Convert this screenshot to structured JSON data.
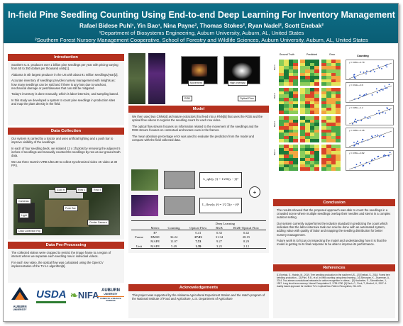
{
  "header": {
    "title": "In-field Pine Seedling Counting Using End-to-end Deep Learning For Inventory Management",
    "authors": "Rafael Bidese Puhl¹, Yin Bao¹, Nina Payne², Thomas Stokes², Ryan Nadel², Scott Enebak²",
    "affiliation_1": "¹Department of Biosystems Engineering, Auburn University, Auburn, AL, United States",
    "affiliation_2": "²Southern Forest Nursery Management Cooperative, School of Forestry and Wildlife Sciences, Auburn University, Auburn, AL, United States"
  },
  "introduction": {
    "heading": "Introduction",
    "paragraphs": [
      "Southern U.S. produces over 1 billion pine seedlings per year with pricing varying from 50 to 350 dollars per thousand units[1].",
      "Alabama is 4th largest producer in the US with about 91 million seedlings/year[2].",
      "Accurate inventory of seedlings provides nursery management with insights as: how many seedlings can be sold and if there is any loss due to washout, mechanical damage or pest/diseases that can still be mitigated.",
      "Today's inventory is done manually, which is labor-intensive, and sampling based.",
      "In this study we developed a system to count pine seedlings in production sites and map the plant density in the field."
    ]
  },
  "data_collection": {
    "heading": "Data Collection",
    "paragraphs": [
      "Our system is carried by a tractor and uses artificial lighting and a push bar to improve visibility of the seedlings.",
      "In each of four seedling beds, we isolated 12 x 1ft plots by removing the adjacent 5 inches of seedlings and manually counted the seedlings by row as our ground truth data.",
      "We use three Garmin VIRB Ultra 30 to collect synchronized video 4K video at 30 FPS."
    ],
    "figure_labels": [
      "3150 ft",
      "Row 1",
      "Row 4",
      "Cameras",
      "Push Bar",
      "Light",
      "Center Camera",
      "Data Collection Rig"
    ]
  },
  "preprocessing": {
    "heading": "Data Pre-Processing",
    "paragraphs": [
      "The collected videos were cropped to restrict the image frame to a region of interest where we separate each seedling row in individual videos.",
      "For each row video, the optical flow was calculated using the OpenCV implementation of the TV-L1 algorithm[6]."
    ]
  },
  "flow_figure": {
    "labels": [
      "Movement",
      "High Intensity",
      "RGB",
      "Optical Flow"
    ]
  },
  "model": {
    "heading": "Model",
    "paragraphs": [
      "We then used two CNNs[4] as feature extractors that feed into a RNN[5] that uses the RGB and the optical flow videos to regress the seedling count for each row video.",
      "The optical flow stream focuses on information related to the movement of the seedlings and the RGB stream focuses on contextual and texture cues in the frames.",
      "The mean absolute percentage error was used to evaluate the prediction from the model and compare with the field collected data."
    ],
    "loss_1": "L_rgb(y, ŷ) = 1/2 Σ(y − ŷ)²",
    "loss_2": "L_flow(y, ŷ) = 1/2 Σ(y − ŷ)²"
  },
  "results_table": {
    "group_header": "Deep Learning",
    "columns": [
      "Metric",
      "Counting",
      "Optical Flow",
      "RGB",
      "RGB+Optical Flow"
    ],
    "rows": [
      {
        "group": "",
        "metric": "R²",
        "values": [
          "",
          "0.41",
          "0.33",
          "0.42"
        ]
      },
      {
        "group": "Frame",
        "metric": "RMSE",
        "values": [
          "36.24",
          "27.03",
          "31.34",
          "28.15"
        ]
      },
      {
        "group": "",
        "metric": "MAPE",
        "values": [
          "11.07",
          "7.53",
          "9.27",
          "8.29"
        ]
      },
      {
        "group": "Unit",
        "metric": "MAPE",
        "values": [
          "5.49",
          "1.39",
          "3.25",
          "2.12"
        ]
      }
    ]
  },
  "acknowledgements": {
    "heading": "Acknowledgements",
    "text": "This project was supported by the Alabama Agricultural Experiment Station and the Hatch program of the National Institute of Food and Agriculture, U.S. Department of Agriculture"
  },
  "heatmap_figure": {
    "headers": [
      "Ground Truth",
      "Predicted",
      "Error"
    ],
    "row_labels": [
      "Bed 1",
      "Bed 2",
      "Bed 3",
      "Bed 4"
    ],
    "scatter_title": "Counting",
    "scatter_equations": [
      "y = 0.86x + 2.79",
      "y = 0.94x + 0.9",
      "y = 0.89x + 1.2",
      "y = 0.89x + 1.46",
      "y = 0.95x + 0.82"
    ]
  },
  "conclusion": {
    "heading": "Conclusion",
    "paragraphs": [
      "The results showed that the proposed approach was able to count the seedlings in a crowded scene where multiple seedlings overlap their needles and stems in a complex outdoor setting.",
      "Our system currently outperforms the industry standard in predicting the count which indicates that the labor-intensive task can now be done with an automated system, adding value with quality of labor and mapping the seedling distribution for better nursery management.",
      "Future work is to focus on inspecting the model and understanding how it is that the model is getting to its final response to be able to improve its performance."
    ]
  },
  "references": {
    "heading": "References",
    "text": "[1] Enebak, S., Hainds, M., 2019. Tree seedling production in the southern US... [2] Enebak, S., 2018. Forest tree seedling production... [3] Puhl, R.B., et al. In-field counting using deep learning... [4] Simonyan, K., Zisserman, A., 2014. Two-stream convolutional networks for action recognition in videos... [5] Hochreiter, S., Schmidhuber, J., 1997. Long short-term memory. Neural Computation 9, 1735-1780. [6] Zach, C., Pock, T., Bischof, H., 2007. A duality based approach for realtime TV-L1 optical flow. Pattern Recognition, 214-223."
  },
  "logos": {
    "auburn": "AUBURN",
    "auburn_sub": "UNIVERSITY",
    "usda": "USDA",
    "nifa": "NIFA",
    "auburn2": "AUBURN",
    "auburn2_sub": "UNIVERSITY",
    "forestry": "FORESTRY & WILDLIFE SCIENCES"
  },
  "colors": {
    "header": "#0d6f88",
    "section_heading": "#b5311f",
    "panel": "#f4f4f4"
  }
}
